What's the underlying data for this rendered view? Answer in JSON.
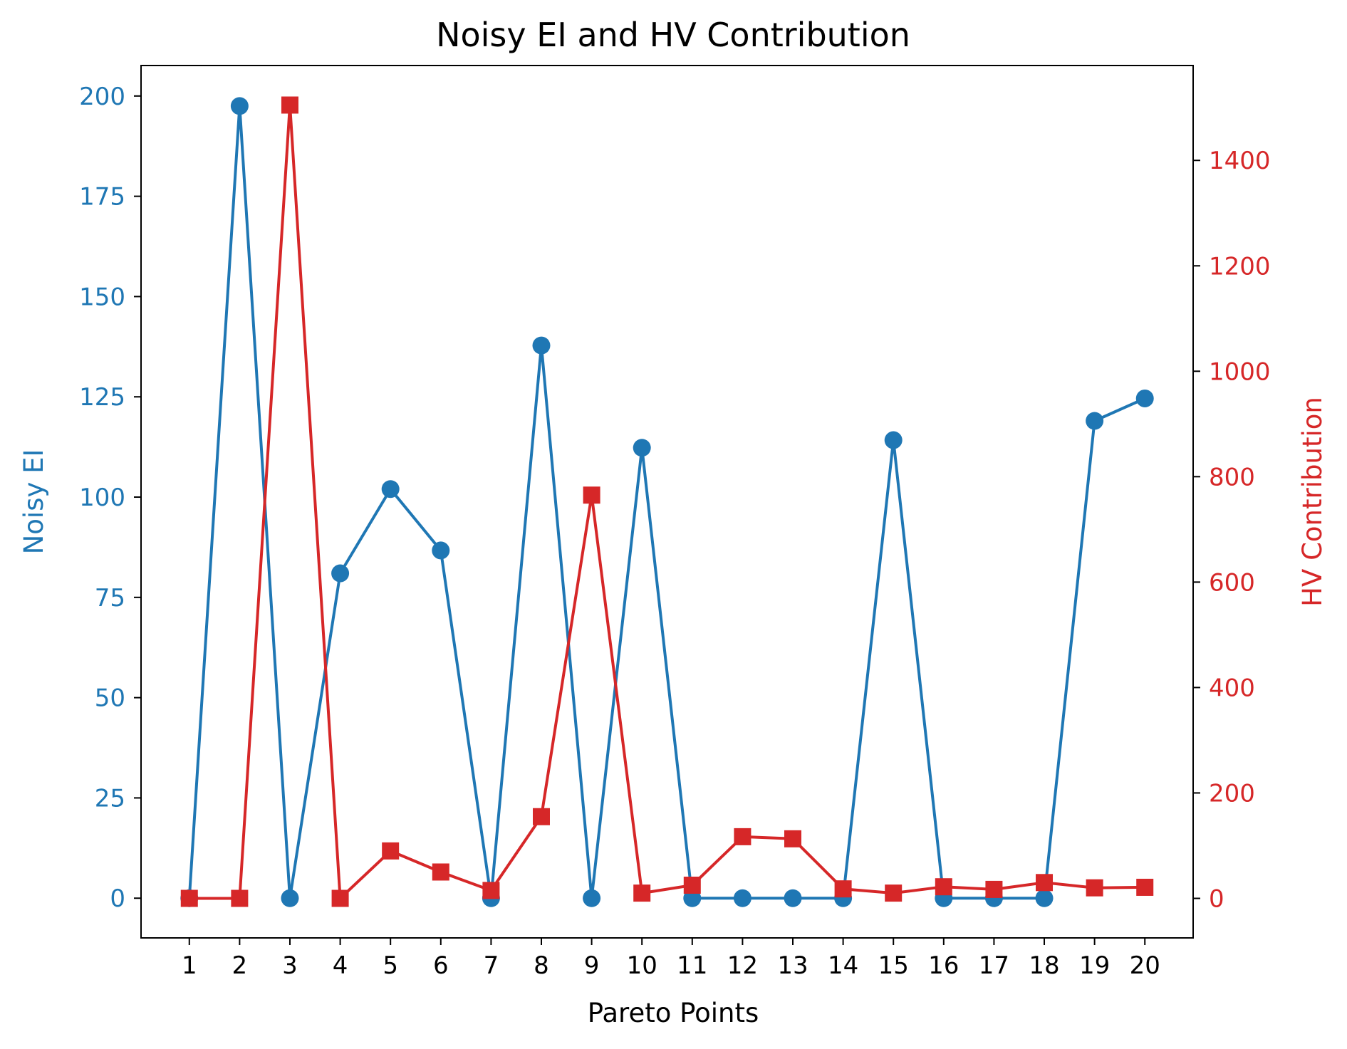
{
  "chart_data": {
    "type": "line",
    "title": "Noisy EI and HV Contribution",
    "xlabel": "Pareto Points",
    "ylabel_left": "Noisy EI",
    "ylabel_right": "HV Contribution",
    "categories": [
      "1",
      "2",
      "3",
      "4",
      "5",
      "6",
      "7",
      "8",
      "9",
      "10",
      "11",
      "12",
      "13",
      "14",
      "15",
      "16",
      "17",
      "18",
      "19",
      "20"
    ],
    "x": [
      1,
      2,
      3,
      4,
      5,
      6,
      7,
      8,
      9,
      10,
      11,
      12,
      13,
      14,
      15,
      16,
      17,
      18,
      19,
      20
    ],
    "ylim_left": [
      -9.9,
      207.6
    ],
    "ylim_right": [
      -75,
      1580
    ],
    "yticks_left": [
      0,
      25,
      50,
      75,
      100,
      125,
      150,
      175,
      200
    ],
    "yticks_right": [
      0,
      200,
      400,
      600,
      800,
      1000,
      1200,
      1400
    ],
    "grid": false,
    "series": [
      {
        "name": "Noisy EI",
        "axis": "left",
        "marker": "circle",
        "color": "#1f77b4",
        "values": [
          0,
          197.5,
          0,
          81,
          102,
          86.7,
          0,
          137.8,
          0,
          112.3,
          0,
          0,
          0,
          0,
          114.2,
          0,
          0,
          0,
          119,
          124.6
        ]
      },
      {
        "name": "HV Contribution",
        "axis": "right",
        "marker": "square",
        "color": "#d62728",
        "values": [
          0,
          0,
          1505,
          0,
          90,
          50,
          15,
          155,
          765,
          10,
          25,
          117,
          113,
          18,
          10,
          22,
          17,
          30,
          20,
          21
        ]
      }
    ],
    "colors": {
      "left_axis": "#1f77b4",
      "right_axis": "#d62728",
      "frame": "#000000"
    }
  }
}
